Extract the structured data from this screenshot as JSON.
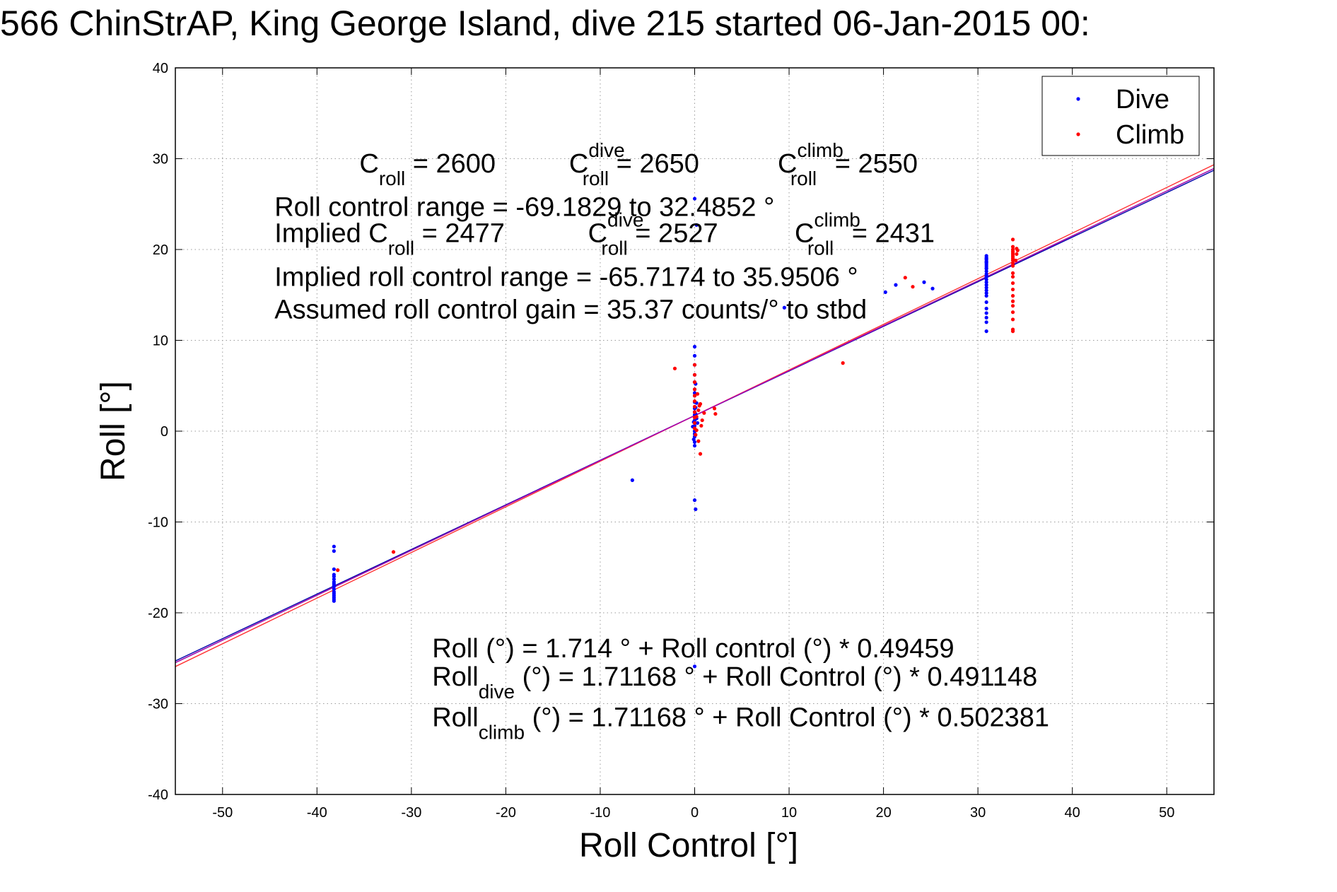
{
  "chart_data": {
    "type": "scatter",
    "title": "566 ChinStrAP, King George Island, dive 215 started 06-Jan-2015 00:",
    "xlabel": "Roll Control [°]",
    "ylabel": "Roll [°]",
    "xlim": [
      -55,
      55
    ],
    "ylim": [
      -40,
      40
    ],
    "xticks": [
      -50,
      -40,
      -30,
      -20,
      -10,
      0,
      10,
      20,
      30,
      40,
      50
    ],
    "yticks": [
      -40,
      -30,
      -20,
      -10,
      0,
      10,
      20,
      30,
      40
    ],
    "grid": true,
    "legend": {
      "placement": "top-right",
      "entries": [
        "Dive",
        "Climb"
      ]
    },
    "colors": {
      "dive": "#0000ff",
      "climb": "#ff0000",
      "fit_all": "#00a0a0",
      "fit_dive": "#0000aa",
      "fit_climb": "#ff3030",
      "fit_extra": "#b000b0"
    },
    "series": [
      {
        "name": "Dive",
        "x": [
          -38.2,
          -38.2,
          -38.2,
          -38.2,
          -38.2,
          -38.2,
          -38.2,
          -38.2,
          -38.2,
          -38.2,
          -38.2,
          -38.2,
          -38.2,
          -38.2,
          -38.2,
          -38.2,
          -38.2,
          -6.6,
          0,
          0,
          0,
          0,
          0,
          0,
          0,
          0,
          0,
          0,
          0,
          0,
          0,
          0,
          0,
          0,
          0,
          0.1,
          0.2,
          0.3,
          -0.1,
          -0.2,
          0,
          0.1,
          0.2,
          0,
          0.1,
          -0.1,
          0,
          0,
          0.2,
          0.1,
          0,
          9.5,
          20.2,
          21.3,
          24.3,
          25.2,
          30.9,
          30.9,
          30.9,
          30.9,
          30.9,
          30.9,
          30.9,
          30.9,
          30.9,
          30.9,
          30.9,
          30.9,
          30.9,
          30.9,
          30.9,
          30.9,
          30.9,
          30.9,
          30.9,
          30.9,
          30.9,
          30.9,
          30.9,
          30.9,
          30.9,
          30.9,
          30.9,
          30.9
        ],
        "y": [
          -12.7,
          -13.2,
          -15.2,
          -15.8,
          -16.3,
          -16.8,
          -17.1,
          -17.4,
          -17.7,
          -17.9,
          -18.1,
          -18.3,
          -18.5,
          -18.7,
          -17.0,
          -16.6,
          -16.0,
          -5.4,
          9.3,
          8.3,
          7.3,
          6.2,
          5.4,
          4.6,
          3.9,
          3.2,
          2.5,
          1.8,
          1.2,
          0.6,
          0.0,
          -0.6,
          -1.2,
          -1.6,
          2.1,
          1.9,
          1.4,
          0.9,
          1.0,
          0.5,
          -0.3,
          2.6,
          3.1,
          -7.6,
          -8.6,
          -0.9,
          4.2,
          25.6,
          22.7,
          5.2,
          -25.9,
          13.6,
          15.3,
          16.1,
          16.4,
          15.7,
          19.3,
          19.1,
          18.9,
          18.7,
          18.5,
          18.3,
          18.1,
          17.9,
          17.6,
          17.3,
          17.0,
          16.7,
          16.4,
          16.1,
          15.8,
          15.5,
          15.2,
          14.9,
          14.2,
          13.5,
          13.0,
          12.5,
          12.0,
          11.0,
          19.0,
          18.6,
          17.9,
          17.1
        ]
      },
      {
        "name": "Climb",
        "x": [
          -37.8,
          -31.9,
          -2.1,
          0,
          0,
          0,
          0,
          0,
          0,
          0,
          0,
          0,
          0,
          0,
          0.2,
          0.4,
          0.6,
          0.8,
          1.0,
          0.3,
          0.5,
          0.7,
          0.2,
          0.1,
          0.4,
          2.1,
          2.2,
          0.6,
          15.7,
          22.3,
          23.1,
          33.7,
          33.7,
          33.7,
          33.7,
          33.7,
          33.7,
          33.7,
          33.7,
          33.7,
          33.7,
          33.7,
          33.7,
          33.7,
          33.7,
          33.7,
          33.7,
          33.7,
          33.7,
          33.7,
          33.7,
          33.7,
          33.7,
          34.1,
          34.2,
          34.1,
          34.0
        ],
        "y": [
          -15.3,
          -13.3,
          6.9,
          7.3,
          6.2,
          5.4,
          4.6,
          3.9,
          3.3,
          2.7,
          2.1,
          1.5,
          0.9,
          0.3,
          1.6,
          2.3,
          3.0,
          1.2,
          2.0,
          4.1,
          2.8,
          0.6,
          0.1,
          -0.4,
          -1.1,
          2.5,
          1.9,
          -2.5,
          7.5,
          16.9,
          15.9,
          21.1,
          20.3,
          20.0,
          19.8,
          19.6,
          19.4,
          19.2,
          19.0,
          18.8,
          18.5,
          18.2,
          17.4,
          17.0,
          16.3,
          15.6,
          14.9,
          14.3,
          13.8,
          13.1,
          12.3,
          11.2,
          11.0,
          19.5,
          19.9,
          20.1,
          18.8
        ]
      }
    ],
    "fit_lines": [
      {
        "intercept": 1.714,
        "slope": 0.49459,
        "color": "#00a0a0"
      },
      {
        "intercept": 1.71168,
        "slope": 0.491148,
        "color": "#0000aa"
      },
      {
        "intercept": 1.71168,
        "slope": 0.502381,
        "color": "#ff3030"
      },
      {
        "intercept": 1.714,
        "slope": 0.4946,
        "color": "#b000b0"
      }
    ],
    "annotations": [
      {
        "kind": "c",
        "parts": [
          "C",
          "roll",
          "",
          " = 2600"
        ],
        "x": -35.5,
        "y": 28.5
      },
      {
        "kind": "c",
        "parts": [
          "C",
          "roll",
          "dive",
          " = 2650"
        ],
        "x": -13.3,
        "y": 28.5
      },
      {
        "kind": "c",
        "parts": [
          "C",
          "roll",
          "climb",
          " = 2550"
        ],
        "x": 8.8,
        "y": 28.5
      },
      {
        "kind": "plain",
        "text": "Roll control range = -69.1829 to 32.4852 °",
        "x": -44.5,
        "y": 23.7
      },
      {
        "kind": "c",
        "parts": [
          "Implied C",
          "roll",
          "",
          " = 2477"
        ],
        "x": -44.5,
        "y": 20.8
      },
      {
        "kind": "c",
        "parts": [
          "C",
          "roll",
          "dive",
          " = 2527"
        ],
        "x": -11.3,
        "y": 20.8
      },
      {
        "kind": "c",
        "parts": [
          "C",
          "roll",
          "climb",
          " = 2431"
        ],
        "x": 10.6,
        "y": 20.8
      },
      {
        "kind": "plain",
        "text": "Implied roll control range = -65.7174 to 35.9506 °",
        "x": -44.5,
        "y": 16.0
      },
      {
        "kind": "plain",
        "text": "Assumed roll control gain = 35.37 counts/° to stbd",
        "x": -44.5,
        "y": 12.4
      },
      {
        "kind": "plain",
        "text": "Roll (°) = 1.714 ° + Roll control (°) * 0.49459",
        "x": -27.8,
        "y": -24.9
      },
      {
        "kind": "c",
        "parts": [
          "Roll",
          "dive",
          "",
          " (°) = 1.71168 ° + Roll Control (°) * 0.491148"
        ],
        "x": -27.8,
        "y": -28.0
      },
      {
        "kind": "c",
        "parts": [
          "Roll",
          "climb",
          "",
          " (°) = 1.71168 ° + Roll Control (°) * 0.502381"
        ],
        "x": -27.8,
        "y": -32.5
      }
    ]
  }
}
